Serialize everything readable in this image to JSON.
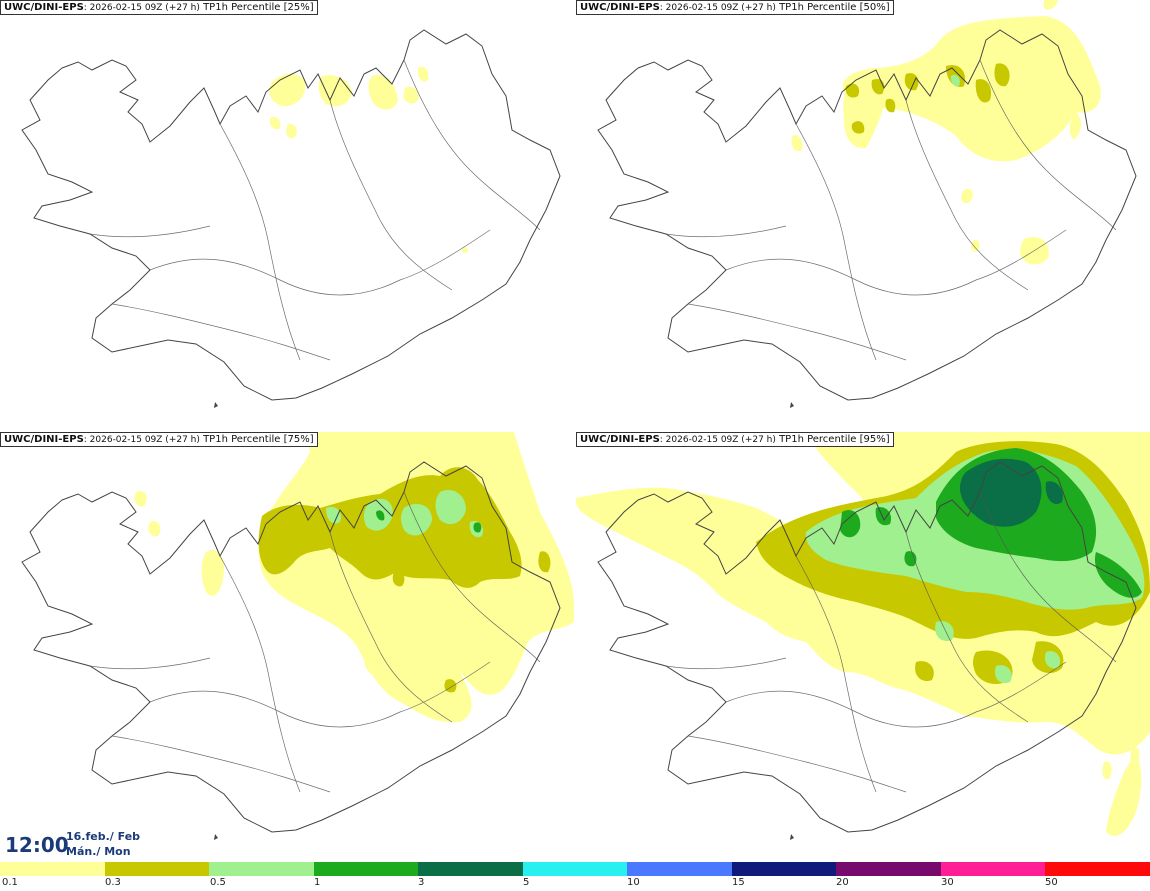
{
  "panels": [
    {
      "model": "UWC/DINI-EPS",
      "run": ": 2026-02-15 09Z (+27 h)",
      "product": " TP1h Percentile ",
      "percentile": "[25%]"
    },
    {
      "model": "UWC/DINI-EPS",
      "run": ": 2026-02-15 09Z (+27 h)",
      "product": " TP1h Percentile ",
      "percentile": "[50%]"
    },
    {
      "model": "UWC/DINI-EPS",
      "run": ": 2026-02-15 09Z (+27 h)",
      "product": " TP1h Percentile ",
      "percentile": "[75%]"
    },
    {
      "model": "UWC/DINI-EPS",
      "run": ": 2026-02-15 09Z (+27 h)",
      "product": " TP1h Percentile ",
      "percentile": "[95%]"
    }
  ],
  "valid_time": {
    "time": "12:00",
    "date_line1": "16.feb./ Feb",
    "date_line2": "Mán./ Mon"
  },
  "legend": {
    "ticks": [
      "0.1",
      "0.3",
      "0.5",
      "1",
      "3",
      "5",
      "10",
      "15",
      "20",
      "30",
      "50"
    ],
    "colors": [
      "#ffff9a",
      "#c8c800",
      "#a0f090",
      "#1eaa1e",
      "#0a6e46",
      "#28f0f0",
      "#4a78ff",
      "#101a7a",
      "#780a6e",
      "#ff1e96",
      "#ff0a0a"
    ]
  },
  "colors": {
    "land_outline": "#444444",
    "light": "#ffff9a",
    "olive": "#c8c800",
    "lightgreen": "#a0f090",
    "green": "#1eaa1e",
    "darkgreen": "#0a6e46"
  }
}
